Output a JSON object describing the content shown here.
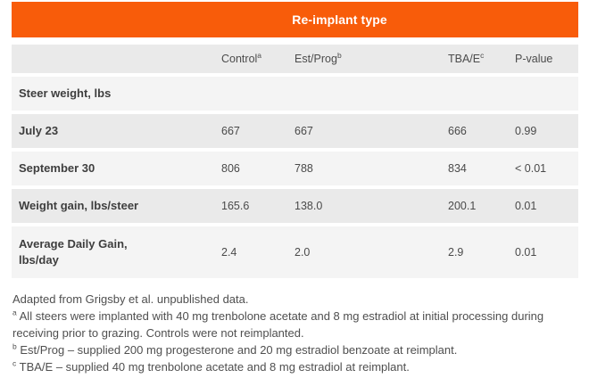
{
  "title": "Re-implant type",
  "colors": {
    "accent_orange": "#F85C0A",
    "row_dark": "#EAEAEA",
    "row_light": "#F4F4F4",
    "title_text": "#FFFFFF",
    "label_text": "#3E3E3E",
    "value_text": "#4A4A4A",
    "footnote_text": "#4F4F4F"
  },
  "table": {
    "columns": [
      {
        "label": "",
        "sup": ""
      },
      {
        "label": "Control",
        "sup": "a"
      },
      {
        "label": "Est/Prog",
        "sup": "b"
      },
      {
        "label": "TBA/E",
        "sup": "c"
      },
      {
        "label": "P-value",
        "sup": ""
      }
    ],
    "rows": [
      {
        "label": "Steer weight, lbs",
        "values": [
          "",
          "",
          "",
          ""
        ]
      },
      {
        "label": "July 23",
        "values": [
          "667",
          "667",
          "666",
          "0.99"
        ]
      },
      {
        "label": "September 30",
        "values": [
          "806",
          "788",
          "834",
          "< 0.01"
        ]
      },
      {
        "label": "Weight gain, lbs/steer",
        "values": [
          "165.6",
          "138.0",
          "200.1",
          "0.01"
        ]
      },
      {
        "label": "Average Daily Gain,\nlbs/day",
        "values": [
          "2.4",
          "2.0",
          "2.9",
          "0.01"
        ]
      }
    ]
  },
  "footnotes": [
    {
      "sup": "",
      "text": "Adapted from Grigsby et al. unpublished data."
    },
    {
      "sup": "a",
      "text": "All steers were implanted with 40 mg trenbolone acetate and 8 mg estradiol at initial processing during receiving prior to grazing. Controls were not reimplanted."
    },
    {
      "sup": "b",
      "text": "Est/Prog – supplied 200 mg progesterone and 20 mg estradiol benzoate at reimplant."
    },
    {
      "sup": "c",
      "text": "TBA/E – supplied 40 mg trenbolone acetate and 8 mg estradiol at reimplant."
    }
  ],
  "chart_data": {
    "type": "table",
    "title": "Re-implant type",
    "columns": [
      "",
      "Control (a)",
      "Est/Prog (b)",
      "TBA/E (c)",
      "P-value"
    ],
    "rows": [
      [
        "Steer weight, lbs",
        "",
        "",
        "",
        ""
      ],
      [
        "July 23",
        667,
        667,
        666,
        "0.99"
      ],
      [
        "September 30",
        806,
        788,
        834,
        "< 0.01"
      ],
      [
        "Weight gain, lbs/steer",
        165.6,
        138.0,
        200.1,
        "0.01"
      ],
      [
        "Average Daily Gain, lbs/day",
        2.4,
        2.0,
        2.9,
        "0.01"
      ]
    ],
    "notes": [
      "Adapted from Grigsby et al. unpublished data.",
      "(a) All steers were implanted with 40 mg trenbolone acetate and 8 mg estradiol at initial processing during receiving prior to grazing. Controls were not reimplanted.",
      "(b) Est/Prog – supplied 200 mg progesterone and 20 mg estradiol benzoate at reimplant.",
      "(c) TBA/E – supplied 40 mg trenbolone acetate and 8 mg estradiol at reimplant."
    ]
  }
}
